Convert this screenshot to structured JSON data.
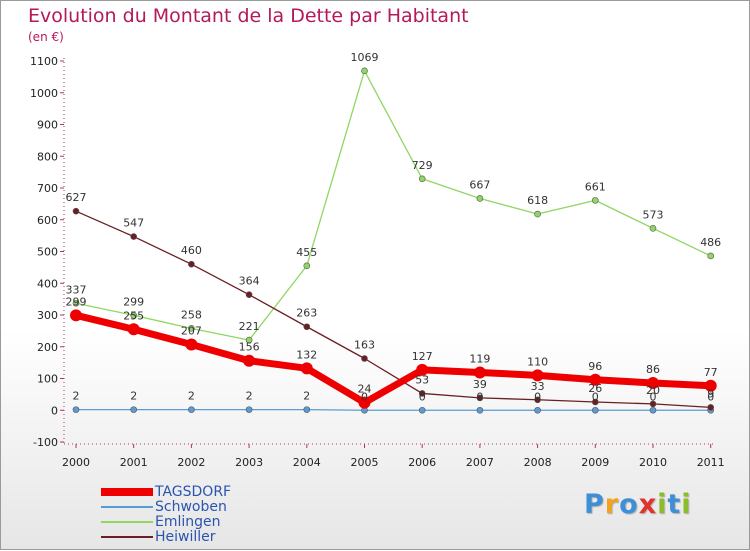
{
  "title": "Evolution du Montant de la Dette par Habitant",
  "subtitle": "(en €)",
  "logo_letters": [
    {
      "ch": "P",
      "color": "#3f8fd6"
    },
    {
      "ch": "r",
      "color": "#f3a21e"
    },
    {
      "ch": "o",
      "color": "#3f8fd6"
    },
    {
      "ch": "x",
      "color": "#e0332c"
    },
    {
      "ch": "i",
      "color": "#8bbd2b"
    },
    {
      "ch": "t",
      "color": "#3f8fd6"
    },
    {
      "ch": "i",
      "color": "#8bbd2b"
    }
  ],
  "chart_data": {
    "type": "line",
    "title": "Evolution du Montant de la Dette par Habitant",
    "ylabel": "(en €)",
    "categories": [
      "2000",
      "2001",
      "2002",
      "2003",
      "2004",
      "2005",
      "2006",
      "2007",
      "2008",
      "2009",
      "2010",
      "2011"
    ],
    "ylim": [
      -100,
      1100
    ],
    "yticks": [
      -100,
      0,
      100,
      200,
      300,
      400,
      500,
      600,
      700,
      800,
      900,
      1000,
      1100
    ],
    "grid": false,
    "legend_position": "bottom-left",
    "series": [
      {
        "name": "TAGSDORF",
        "color": "#ee0000",
        "style": "thick",
        "values": [
          299,
          255,
          207,
          156,
          132,
          24,
          127,
          119,
          110,
          96,
          86,
          77
        ],
        "labels": [
          "299",
          "255",
          "207",
          "156",
          "132",
          "24",
          "127",
          "119",
          "110",
          "96",
          "86",
          "77"
        ]
      },
      {
        "name": "Schwoben",
        "color": "#5b9bd5",
        "style": "thin",
        "values": [
          2,
          2,
          2,
          2,
          2,
          0,
          0,
          0,
          0,
          0,
          0,
          0
        ],
        "labels": [
          "2",
          "2",
          "2",
          "2",
          "2",
          "0",
          "0",
          "0",
          "0",
          "0",
          "0",
          "0"
        ]
      },
      {
        "name": "Emlingen",
        "color": "#8fd663",
        "style": "thin",
        "values": [
          337,
          299,
          258,
          221,
          455,
          1069,
          729,
          667,
          618,
          661,
          573,
          486
        ],
        "labels": [
          "337",
          "299",
          "258",
          "221",
          "455",
          "1069",
          "729",
          "667",
          "618",
          "661",
          "573",
          "486"
        ]
      },
      {
        "name": "Heiwiller",
        "color": "#6b1f24",
        "style": "thin",
        "values": [
          627,
          547,
          460,
          364,
          263,
          163,
          53,
          39,
          33,
          26,
          20,
          9
        ],
        "labels": [
          "627",
          "547",
          "460",
          "364",
          "263",
          "163",
          "53",
          "39",
          "33",
          "26",
          "20",
          "9"
        ]
      }
    ]
  }
}
